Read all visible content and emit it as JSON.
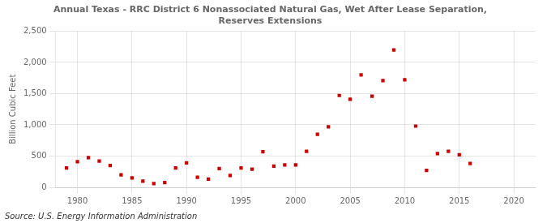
{
  "chart_data": {
    "type": "scatter",
    "title": "Annual Texas - RRC District 6 Nonassociated Natural Gas, Wet After Lease Separation,\nReserves Extensions",
    "ylabel": "Billion Cubic Feet",
    "source": "Source: U.S. Energy Information Administration",
    "x": [
      1979,
      1980,
      1981,
      1982,
      1983,
      1984,
      1985,
      1986,
      1987,
      1988,
      1989,
      1990,
      1991,
      1992,
      1993,
      1994,
      1995,
      1996,
      1997,
      1998,
      1999,
      2000,
      2001,
      2002,
      2003,
      2004,
      2005,
      2006,
      2007,
      2008,
      2009,
      2010,
      2011,
      2012,
      2013,
      2014,
      2015,
      2016
    ],
    "values": [
      310,
      410,
      475,
      420,
      350,
      200,
      150,
      100,
      60,
      75,
      310,
      390,
      160,
      130,
      300,
      190,
      310,
      290,
      570,
      340,
      360,
      360,
      575,
      850,
      970,
      1470,
      1410,
      1800,
      1460,
      1710,
      2200,
      1720,
      980,
      270,
      540,
      575,
      520,
      380
    ],
    "color": "#cc0000",
    "marker": "square",
    "xlim": [
      1978,
      2022
    ],
    "xticks": [
      1980,
      1985,
      1990,
      1995,
      2000,
      2005,
      2010,
      2015,
      2020
    ],
    "ylim": [
      0,
      2500
    ],
    "yticks": [
      0,
      500,
      {
        "value": 1000,
        "label": "1,000"
      },
      {
        "value": 1500,
        "label": "1,500"
      },
      {
        "value": 2000,
        "label": "2,000"
      },
      {
        "value": 2500,
        "label": "2,500"
      }
    ],
    "grid": true
  }
}
